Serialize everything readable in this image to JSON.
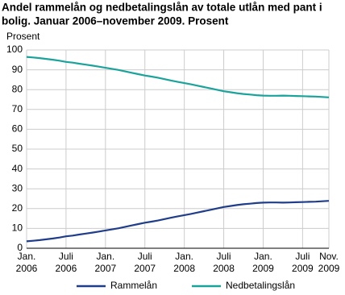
{
  "chart_data": {
    "type": "line",
    "title": [
      "Andel rammelån og nedbetalingslån av totale utlån med pant i",
      "bolig. Januar 2006–november 2009. Prosent"
    ],
    "y_label": "Prosent",
    "categories": [
      "Jan. 2006",
      null,
      null,
      null,
      null,
      null,
      "Juli 2006",
      null,
      null,
      null,
      null,
      null,
      "Jan. 2007",
      null,
      null,
      null,
      null,
      null,
      "Juli 2007",
      null,
      null,
      null,
      null,
      null,
      "Jan. 2008",
      null,
      null,
      null,
      null,
      null,
      "Juli 2008",
      null,
      null,
      null,
      null,
      null,
      "Jan. 2009",
      null,
      null,
      null,
      null,
      null,
      "Juli 2009",
      null,
      null,
      null,
      "Nov. 2009"
    ],
    "series": [
      {
        "name": "Rammelån",
        "color": "#1f3d8a",
        "values": [
          3.5,
          3.8,
          4.1,
          4.5,
          4.9,
          5.4,
          6.0,
          6.4,
          6.9,
          7.4,
          7.9,
          8.4,
          9.0,
          9.5,
          10.1,
          10.8,
          11.5,
          12.2,
          12.9,
          13.4,
          14.0,
          14.7,
          15.4,
          16.1,
          16.7,
          17.3,
          18.0,
          18.7,
          19.4,
          20.1,
          20.8,
          21.3,
          21.8,
          22.2,
          22.5,
          22.8,
          23.0,
          23.1,
          23.1,
          23.0,
          23.1,
          23.2,
          23.3,
          23.4,
          23.5,
          23.7,
          23.9
        ]
      },
      {
        "name": "Nedbetalingslån",
        "color": "#1aa39a",
        "values": [
          96.5,
          96.2,
          95.9,
          95.5,
          95.1,
          94.6,
          94.0,
          93.6,
          93.1,
          92.6,
          92.1,
          91.6,
          91.0,
          90.5,
          89.9,
          89.2,
          88.5,
          87.8,
          87.1,
          86.6,
          86.0,
          85.3,
          84.6,
          83.9,
          83.3,
          82.7,
          82.0,
          81.3,
          80.6,
          79.9,
          79.2,
          78.7,
          78.2,
          77.8,
          77.5,
          77.2,
          77.0,
          76.9,
          76.9,
          77.0,
          76.9,
          76.8,
          76.7,
          76.6,
          76.5,
          76.3,
          76.1
        ]
      }
    ],
    "ylim": [
      0,
      100
    ],
    "yticks": [
      0,
      10,
      20,
      30,
      40,
      50,
      60,
      70,
      80,
      90,
      100
    ],
    "grid": true
  }
}
